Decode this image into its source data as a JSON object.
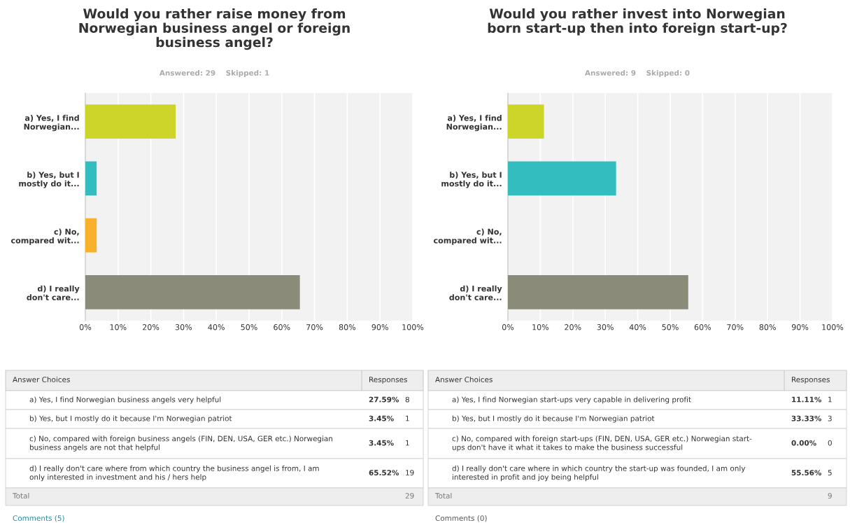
{
  "chart_data": [
    {
      "type": "bar",
      "orientation": "horizontal",
      "title": "Would you rather raise money from\nNorwegian business angel or foreign\nbusiness angel?",
      "subtitle": "Answered: 29    Skipped: 1",
      "categories": [
        "a) Yes, I find\nNorwegian...",
        "b) Yes, but I\nmostly do it...",
        "c) No,\ncompared wit...",
        "d) I really\ndon't care..."
      ],
      "values": [
        27.59,
        3.45,
        3.45,
        65.52
      ],
      "colors": [
        "#cdd52a",
        "#33bdbe",
        "#f7b12a",
        "#8a8b79"
      ],
      "xlim": [
        0,
        100
      ],
      "xticks": [
        {
          "value": 0,
          "label": "0%"
        },
        {
          "value": 10,
          "label": "10%"
        },
        {
          "value": 20,
          "label": "20%"
        },
        {
          "value": 30,
          "label": "30%"
        },
        {
          "value": 40,
          "label": "40%"
        },
        {
          "value": 50,
          "label": "50%"
        },
        {
          "value": 60,
          "label": "60%"
        },
        {
          "value": 70,
          "label": "70%"
        },
        {
          "value": 80,
          "label": "80%"
        },
        {
          "value": 90,
          "label": "90%"
        },
        {
          "value": 100,
          "label": "100%"
        }
      ],
      "grid": "x",
      "legend": false,
      "annotations": [
        "Answer Choices",
        "Responses",
        "a) Yes, I find Norwegian business angels very helpful",
        "b) Yes, but I mostly do it because I'm Norwegian patriot",
        "c) No, compared with foreign business angels (FIN, DEN, USA, GER etc.) Norwegian\nbusiness angels are not that helpful",
        "d) I really don't care where from which country the business angel is from, I am\nonly interested in investment and his / hers help",
        "27.59%",
        "3.45%",
        "3.45%",
        "65.52%",
        "8",
        "1",
        "1",
        "19",
        "Total",
        "29",
        "Comments (5)"
      ]
    },
    {
      "type": "bar",
      "orientation": "horizontal",
      "title": "Would you rather invest into Norwegian\nborn start-up then into foreign start-up?",
      "subtitle": "Answered: 9    Skipped: 0",
      "categories": [
        "a) Yes, I find\nNorwegian...",
        "b) Yes, but I\nmostly do it...",
        "c) No,\ncompared wit...",
        "d) I really\ndon't care..."
      ],
      "values": [
        11.11,
        33.33,
        0.0,
        55.56
      ],
      "colors": [
        "#cdd52a",
        "#33bdbe",
        "#f7b12a",
        "#8a8b79"
      ],
      "xlim": [
        0,
        100
      ],
      "xticks": [
        {
          "value": 0,
          "label": "0%"
        },
        {
          "value": 10,
          "label": "10%"
        },
        {
          "value": 20,
          "label": "20%"
        },
        {
          "value": 30,
          "label": "30%"
        },
        {
          "value": 40,
          "label": "40%"
        },
        {
          "value": 50,
          "label": "50%"
        },
        {
          "value": 60,
          "label": "60%"
        },
        {
          "value": 70,
          "label": "70%"
        },
        {
          "value": 80,
          "label": "80%"
        },
        {
          "value": 90,
          "label": "90%"
        },
        {
          "value": 100,
          "label": "100%"
        }
      ],
      "grid": "x",
      "legend": false,
      "annotations": [
        "Answer Choices",
        "Responses",
        "a) Yes, I find Norwegian start-ups very capable in delivering profit",
        "b) Yes, but I mostly do it because I'm Norwegian patriot",
        "c) No, compared with foreign start-ups (FIN, DEN, USA, GER etc.) Norwegian start-\nups don't have it what it takes to make the business successful",
        "d) I really don't care where in which country the start-up was founded, I am only\ninterested in profit and joy being helpful",
        "11.11%",
        "33.33%",
        "0.00%",
        "55.56%",
        "1",
        "3",
        "0",
        "5",
        "Total",
        "9",
        "Comments (0)"
      ]
    }
  ]
}
